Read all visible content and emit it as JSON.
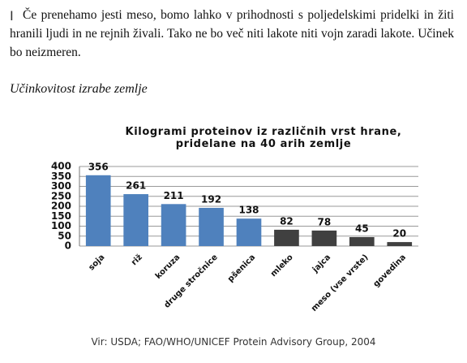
{
  "document": {
    "paragraph": "Če prenehamo jesti meso, bomo lahko v prihodnosti s poljedelskimi pridelki in žiti hranili ljudi in ne rejnih živali. Tako ne bo več niti lakote niti vojn zaradi lakote. Učinek bo neizmeren.",
    "heading": "Učinkovitost izrabe zemlje",
    "source": "Vir: USDA; FAO/WHO/UNICEF Protein Advisory Group, 2004"
  },
  "chart_data": {
    "type": "bar",
    "title": "Kilogrami proteinov iz različnih vrst hrane, pridelane na 40 arih zemlje",
    "categories": [
      "soja",
      "riž",
      "koruza",
      "druge stročnice",
      "pšenica",
      "mleko",
      "jajca",
      "meso (vse vrste)",
      "govedina"
    ],
    "values": [
      356,
      261,
      211,
      192,
      138,
      82,
      78,
      45,
      20
    ],
    "colors": [
      "#4f81bd",
      "#4f81bd",
      "#4f81bd",
      "#4f81bd",
      "#4f81bd",
      "#404040",
      "#404040",
      "#404040",
      "#404040"
    ],
    "ylim": [
      0,
      400
    ],
    "yticks": [
      0,
      50,
      100,
      150,
      200,
      250,
      300,
      350,
      400
    ],
    "grid": true
  }
}
